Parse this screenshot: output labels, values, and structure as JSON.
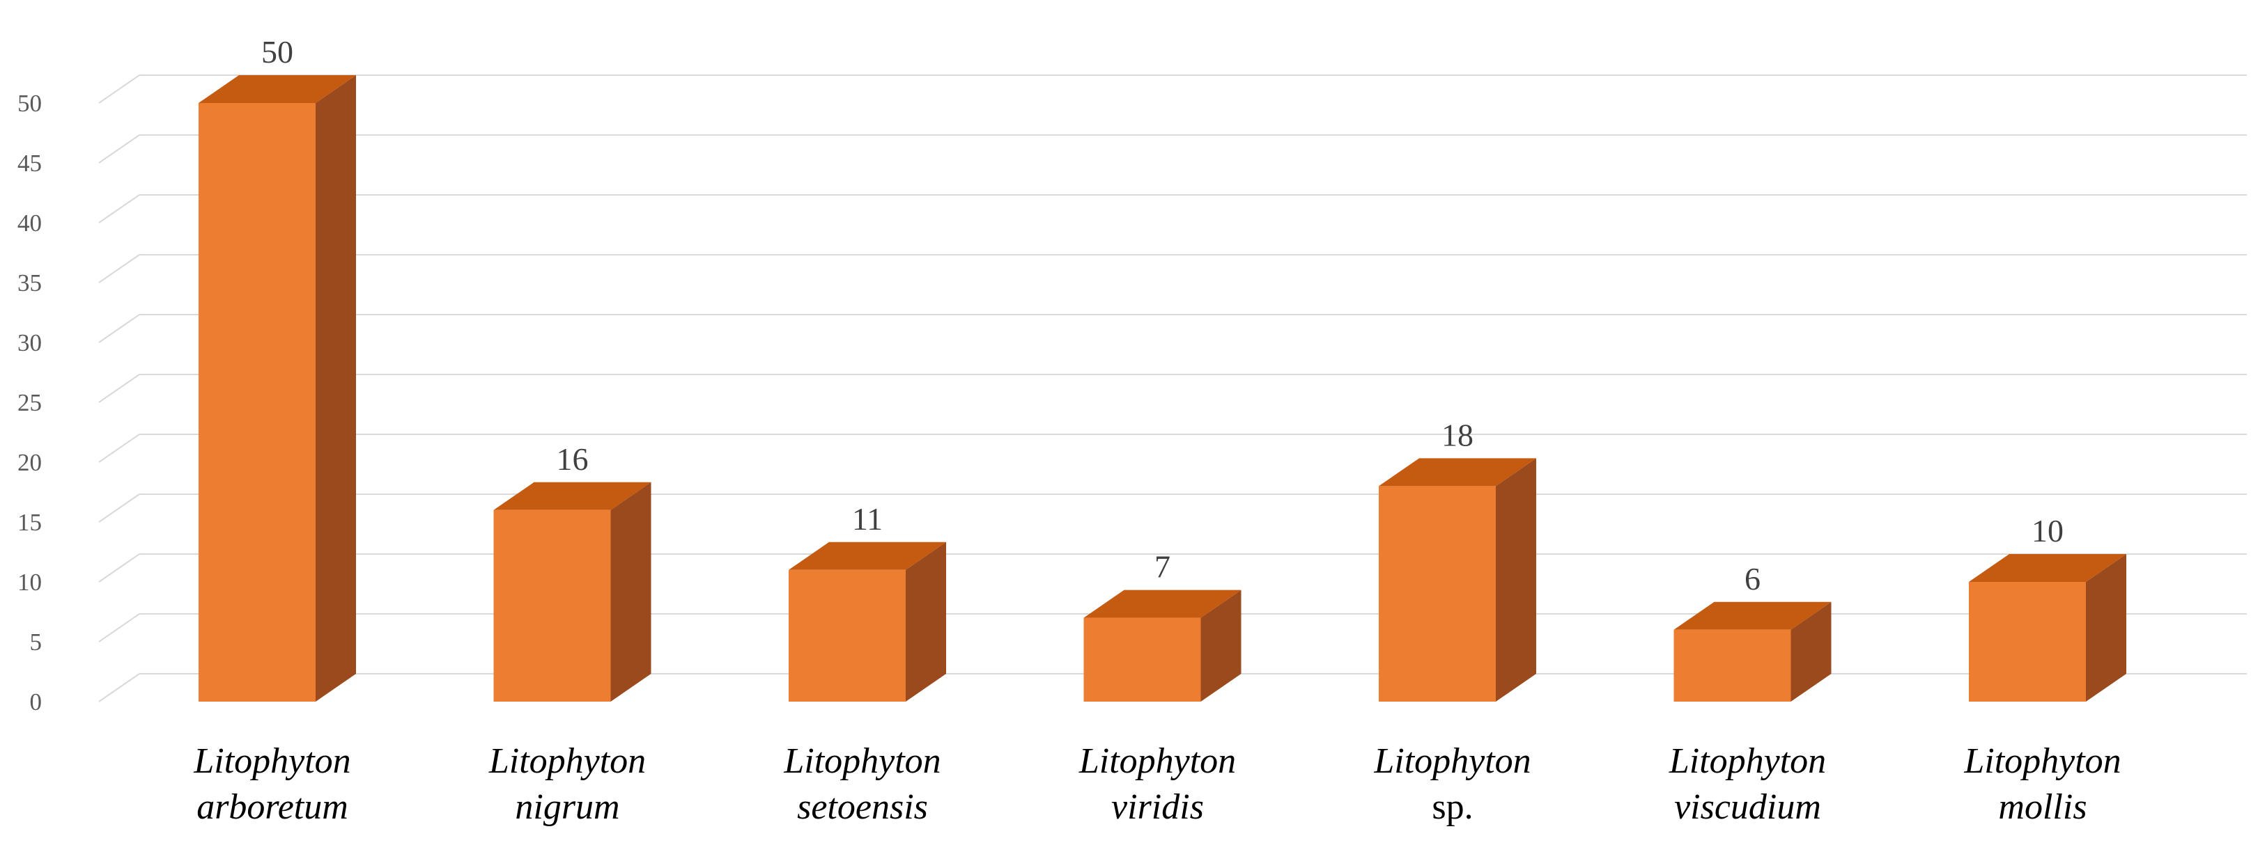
{
  "chart_data": {
    "type": "bar",
    "title": "",
    "xlabel": "",
    "ylabel": "",
    "ylim": [
      0,
      50
    ],
    "yticks": [
      0,
      5,
      10,
      15,
      20,
      25,
      30,
      35,
      40,
      45,
      50
    ],
    "grid": true,
    "style": "3d-column",
    "categories": [
      [
        "Litophyton",
        "arboretum"
      ],
      [
        "Litophyton",
        "nigrum"
      ],
      [
        "Litophyton",
        "setoensis"
      ],
      [
        "Litophyton",
        "viridis"
      ],
      [
        "Litophyton",
        "sp."
      ],
      [
        "Litophyton",
        "viscudium"
      ],
      [
        "Litophyton",
        "mollis"
      ]
    ],
    "category_italic": [
      [
        true,
        true
      ],
      [
        true,
        true
      ],
      [
        true,
        true
      ],
      [
        true,
        true
      ],
      [
        true,
        false
      ],
      [
        true,
        true
      ],
      [
        true,
        true
      ]
    ],
    "values": [
      50,
      16,
      11,
      7,
      18,
      6,
      10
    ],
    "data_labels": [
      "50",
      "16",
      "11",
      "7",
      "18",
      "6",
      "10"
    ],
    "colors": {
      "front": "#ED7D31",
      "top": "#C55A11",
      "side": "#9A4A1C",
      "grid": "#D9D9D9"
    }
  }
}
